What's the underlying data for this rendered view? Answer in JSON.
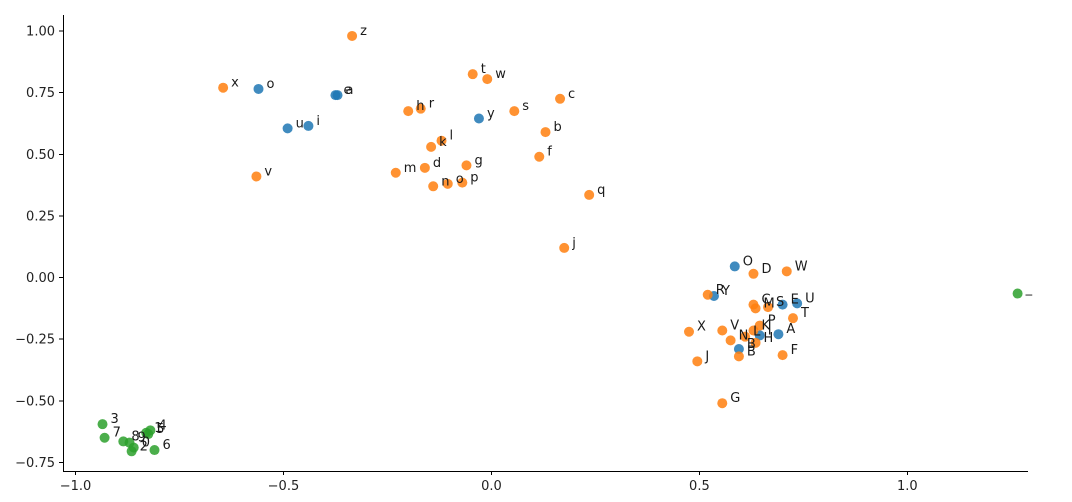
{
  "chart_data": {
    "type": "scatter",
    "title": "",
    "xlabel": "",
    "ylabel": "",
    "xlim": [
      -1.03,
      1.29
    ],
    "ylim": [
      -0.785,
      1.065
    ],
    "xticks": [
      {
        "value": -1.0,
        "label": "−1.0"
      },
      {
        "value": -0.5,
        "label": "−0.5"
      },
      {
        "value": 0.0,
        "label": "0.0"
      },
      {
        "value": 0.5,
        "label": "0.5"
      },
      {
        "value": 1.0,
        "label": "1.0"
      }
    ],
    "yticks": [
      {
        "value": 1.0,
        "label": "1.00"
      },
      {
        "value": 0.75,
        "label": "0.75"
      },
      {
        "value": 0.5,
        "label": "0.50"
      },
      {
        "value": 0.25,
        "label": "0.25"
      },
      {
        "value": 0.0,
        "label": "0.00"
      },
      {
        "value": -0.25,
        "label": "−0.25"
      },
      {
        "value": -0.5,
        "label": "−0.50"
      },
      {
        "value": -0.75,
        "label": "−0.75"
      }
    ],
    "grid": false,
    "spines": [
      "left",
      "bottom"
    ],
    "colors": [
      "#1f77b4",
      "#ff7f0e",
      "#2ca02c"
    ],
    "series": [
      {
        "color": "#1f77b4",
        "points": [
          {
            "x": -0.56,
            "y": 0.765,
            "label": "o"
          },
          {
            "x": -0.375,
            "y": 0.74,
            "label": "e"
          },
          {
            "x": -0.37,
            "y": 0.74,
            "label": "a"
          },
          {
            "x": -0.49,
            "y": 0.605,
            "label": "u"
          },
          {
            "x": -0.44,
            "y": 0.615,
            "label": "i"
          },
          {
            "x": -0.03,
            "y": 0.645,
            "label": "y"
          },
          {
            "x": 0.585,
            "y": 0.045,
            "label": "O"
          },
          {
            "x": 0.535,
            "y": -0.075,
            "label": "Y"
          },
          {
            "x": 0.7,
            "y": -0.11,
            "label": "E"
          },
          {
            "x": 0.735,
            "y": -0.105,
            "label": "U"
          },
          {
            "x": 0.69,
            "y": -0.23,
            "label": "A"
          },
          {
            "x": 0.595,
            "y": -0.29,
            "label": "B"
          },
          {
            "x": 0.645,
            "y": -0.235,
            "label": "I"
          }
        ]
      },
      {
        "color": "#ff7f0e",
        "points": [
          {
            "x": -0.645,
            "y": 0.77,
            "label": "x"
          },
          {
            "x": -0.335,
            "y": 0.98,
            "label": "z"
          },
          {
            "x": -0.2,
            "y": 0.675,
            "label": "h"
          },
          {
            "x": -0.17,
            "y": 0.685,
            "label": "r"
          },
          {
            "x": -0.045,
            "y": 0.825,
            "label": "t"
          },
          {
            "x": -0.01,
            "y": 0.805,
            "label": "w"
          },
          {
            "x": 0.165,
            "y": 0.725,
            "label": "c"
          },
          {
            "x": 0.055,
            "y": 0.675,
            "label": "s"
          },
          {
            "x": 0.13,
            "y": 0.59,
            "label": "b"
          },
          {
            "x": -0.12,
            "y": 0.555,
            "label": "l"
          },
          {
            "x": -0.145,
            "y": 0.53,
            "label": "k"
          },
          {
            "x": 0.115,
            "y": 0.49,
            "label": "f"
          },
          {
            "x": -0.23,
            "y": 0.425,
            "label": "m"
          },
          {
            "x": -0.16,
            "y": 0.445,
            "label": "d"
          },
          {
            "x": -0.06,
            "y": 0.455,
            "label": "g"
          },
          {
            "x": -0.14,
            "y": 0.37,
            "label": "n"
          },
          {
            "x": -0.105,
            "y": 0.38,
            "label": "o"
          },
          {
            "x": -0.07,
            "y": 0.385,
            "label": "p"
          },
          {
            "x": -0.565,
            "y": 0.41,
            "label": "v"
          },
          {
            "x": 0.235,
            "y": 0.335,
            "label": "q"
          },
          {
            "x": 0.175,
            "y": 0.12,
            "label": "j"
          },
          {
            "x": 0.63,
            "y": 0.015,
            "label": "D"
          },
          {
            "x": 0.71,
            "y": 0.025,
            "label": "W"
          },
          {
            "x": 0.52,
            "y": -0.07,
            "label": "R"
          },
          {
            "x": 0.63,
            "y": -0.11,
            "label": "C"
          },
          {
            "x": 0.665,
            "y": -0.12,
            "label": "S"
          },
          {
            "x": 0.635,
            "y": -0.125,
            "label": "M"
          },
          {
            "x": 0.725,
            "y": -0.165,
            "label": "T"
          },
          {
            "x": 0.475,
            "y": -0.22,
            "label": "X"
          },
          {
            "x": 0.555,
            "y": -0.215,
            "label": "V"
          },
          {
            "x": 0.645,
            "y": -0.195,
            "label": "P"
          },
          {
            "x": 0.63,
            "y": -0.215,
            "label": "K"
          },
          {
            "x": 0.575,
            "y": -0.255,
            "label": "N"
          },
          {
            "x": 0.61,
            "y": -0.24,
            "label": "L"
          },
          {
            "x": 0.635,
            "y": -0.265,
            "label": "H"
          },
          {
            "x": 0.7,
            "y": -0.315,
            "label": "F"
          },
          {
            "x": 0.595,
            "y": -0.32,
            "label": "B"
          },
          {
            "x": 0.495,
            "y": -0.34,
            "label": "J"
          },
          {
            "x": 0.555,
            "y": -0.51,
            "label": "G"
          }
        ]
      },
      {
        "color": "#2ca02c",
        "points": [
          {
            "x": 1.265,
            "y": -0.065,
            "label": "_"
          },
          {
            "x": -0.935,
            "y": -0.595,
            "label": "3"
          },
          {
            "x": -0.93,
            "y": -0.65,
            "label": "7"
          },
          {
            "x": -0.885,
            "y": -0.665,
            "label": "8"
          },
          {
            "x": -0.87,
            "y": -0.67,
            "label": "9"
          },
          {
            "x": -0.86,
            "y": -0.69,
            "label": "0"
          },
          {
            "x": -0.865,
            "y": -0.705,
            "label": "2"
          },
          {
            "x": -0.83,
            "y": -0.63,
            "label": "1"
          },
          {
            "x": -0.825,
            "y": -0.635,
            "label": "5"
          },
          {
            "x": -0.82,
            "y": -0.62,
            "label": "4"
          },
          {
            "x": -0.81,
            "y": -0.7,
            "label": "6"
          }
        ]
      }
    ]
  }
}
